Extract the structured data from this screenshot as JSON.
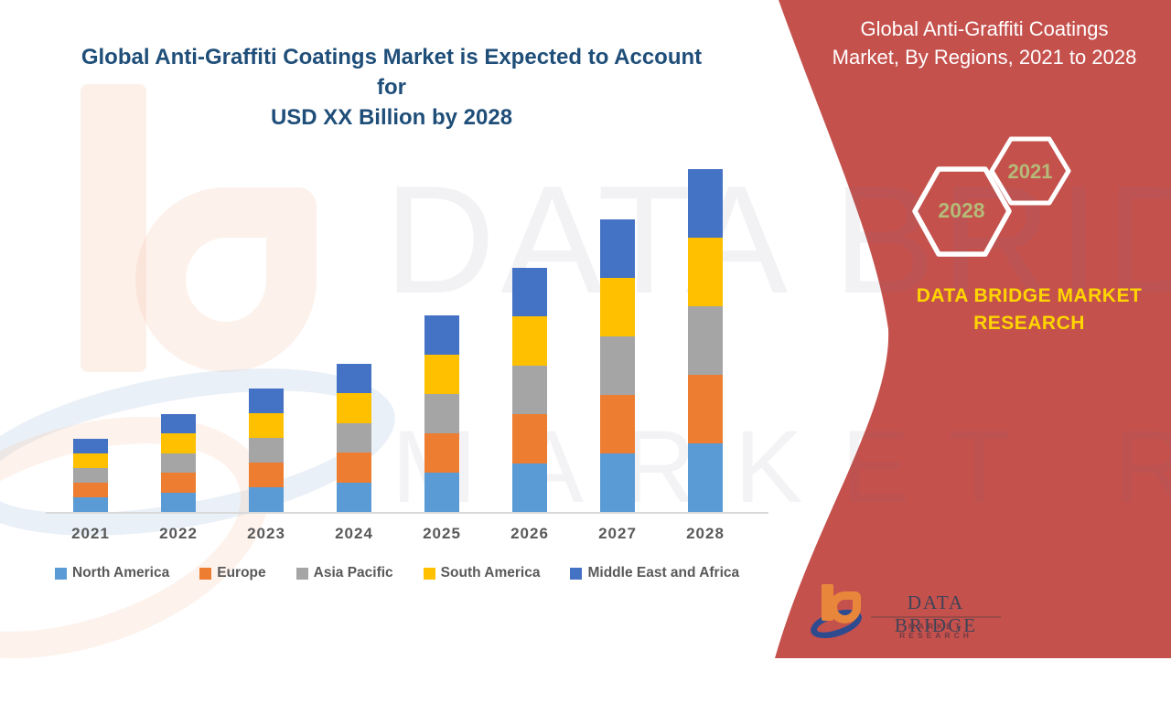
{
  "title": {
    "line1": "Global Anti-Graffiti Coatings Market is Expected to Account for",
    "line2": "USD XX Billion by 2028"
  },
  "side_panel": {
    "heading_line1": "Global Anti-Graffiti Coatings",
    "heading_line2": "Market, By Regions, 2021 to 2028",
    "hex_large_year": "2028",
    "hex_small_year": "2021",
    "brand": "DATA BRIDGE MARKET RESEARCH"
  },
  "watermark": {
    "line1": "DATA BRIDGE",
    "line2": "MARKET RESEARCH"
  },
  "footer_logo": {
    "title": "DATA BRIDGE",
    "subtitle": "MARKET RESEARCH"
  },
  "colors": {
    "panel_red": "#C5514D",
    "title_blue": "#1F4E79",
    "hex_year_text": "#B5BA78",
    "brand_yellow": "#FFD500",
    "axis_label_gray": "#595959",
    "axis_line_gray": "#d9d9d9"
  },
  "chart_data": {
    "type": "bar",
    "stacked": true,
    "title": "Global Anti-Graffiti Coatings Market, By Regions, 2021 to 2028",
    "xlabel": "",
    "ylabel": "",
    "value_unit": "relative units (no y-axis scale shown; values estimated from bar pixel heights)",
    "gridlines": false,
    "y_axis_visible": false,
    "legend_position": "bottom",
    "categories": [
      "2021",
      "2022",
      "2023",
      "2024",
      "2025",
      "2026",
      "2027",
      "2028"
    ],
    "series": [
      {
        "name": "North America",
        "color": "#5B9BD5",
        "values": [
          16,
          21.5,
          27,
          32.5,
          43,
          53.5,
          64,
          75
        ]
      },
      {
        "name": "Europe",
        "color": "#ED7D31",
        "values": [
          16,
          21.5,
          27,
          32.5,
          43,
          53.5,
          64,
          75
        ]
      },
      {
        "name": "Asia Pacific",
        "color": "#A5A5A5",
        "values": [
          16,
          21.5,
          27,
          32.5,
          43,
          53.5,
          64,
          75
        ]
      },
      {
        "name": "South America",
        "color": "#FFC000",
        "values": [
          16,
          21.5,
          27,
          32.5,
          43,
          53.5,
          64,
          75
        ]
      },
      {
        "name": "Middle East and Africa",
        "color": "#4472C4",
        "values": [
          16,
          21.5,
          27,
          32.5,
          43,
          53.5,
          64,
          75
        ]
      }
    ],
    "totals": [
      80,
      107.5,
      135,
      162.5,
      215,
      267.5,
      320,
      375
    ]
  }
}
